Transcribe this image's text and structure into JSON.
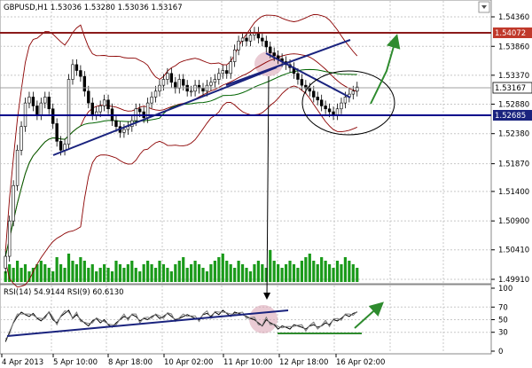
{
  "header": {
    "main_title": "GBPUSD,H1  1.53036 1.53280 1.53036 1.53167",
    "rsi_title": "RSI(14) 54.9144  RSI(9) 60.6130"
  },
  "price_axis": {
    "min": 1.4991,
    "max": 1.5442,
    "ticks": [
      "1.54360",
      "1.53860",
      "1.53370",
      "1.52880",
      "1.52380",
      "1.51870",
      "1.51400",
      "1.50900",
      "1.50410",
      "1.49910"
    ]
  },
  "price_labels": {
    "resistance": "1.54072",
    "current": "1.53167",
    "support": "1.52685"
  },
  "rsi_axis": {
    "ticks": [
      "100",
      "70",
      "50",
      "30",
      "0"
    ]
  },
  "time_axis": {
    "labels": [
      "4 Apr 2013",
      "5 Apr 10:00",
      "8 Apr 18:00",
      "10 Apr 02:00",
      "11 Apr 10:00",
      "12 Apr 18:00",
      "16 Apr 02:00"
    ]
  },
  "colors": {
    "candle": "#000000",
    "bollinger": "#8b0000",
    "sma": "#006400",
    "resistance_line": "#8b1a1a",
    "support_line": "#00008b",
    "trendline": "#1a237e",
    "annotation_arrow": "#2e8b2e",
    "volume": "#1a9a1a",
    "highlight": "#d9a0b0",
    "label_box": "#c0392b",
    "support_box": "#1a237e"
  },
  "chart_data": {
    "type": "line",
    "series": [
      {
        "values": [
          1.503,
          1.509,
          1.515,
          1.521,
          1.525,
          1.529,
          1.53,
          1.5285,
          1.527,
          1.529,
          1.53,
          1.528,
          1.5255,
          1.5225,
          1.521,
          1.522,
          1.533,
          1.5355,
          1.5345,
          1.5335,
          1.531,
          1.529,
          1.527,
          1.5275,
          1.5285,
          1.5295,
          1.528,
          1.526,
          1.525,
          1.524,
          1.5245,
          1.525,
          1.526,
          1.528,
          1.5275,
          1.5265,
          1.529,
          1.53,
          1.531,
          1.532,
          1.533,
          1.534,
          1.5325,
          1.5315,
          1.533,
          1.532,
          1.531,
          1.531,
          1.532,
          1.5315,
          1.531,
          1.532,
          1.5325,
          1.533,
          1.534,
          1.5345,
          1.534,
          1.536,
          1.538,
          1.5395,
          1.54,
          1.5395,
          1.5405,
          1.541,
          1.54,
          1.5395,
          1.5385,
          1.5375,
          1.537,
          1.5365,
          1.536,
          1.5355,
          1.535,
          1.534,
          1.533,
          1.532,
          1.5315,
          1.531,
          1.53,
          1.5295,
          1.5285,
          1.528,
          1.5275,
          1.527,
          1.528,
          1.529,
          1.53,
          1.5305,
          1.531,
          1.5317
        ]
      }
    ],
    "volume": {
      "values": [
        0.3,
        0.5,
        0.4,
        0.6,
        0.4,
        0.5,
        0.3,
        0.4,
        0.5,
        0.6,
        0.5,
        0.4,
        0.3,
        0.7,
        0.5,
        0.4,
        0.8,
        0.6,
        0.5,
        0.7,
        0.6,
        0.4,
        0.5,
        0.3,
        0.4,
        0.5,
        0.4,
        0.3,
        0.6,
        0.5,
        0.4,
        0.5,
        0.6,
        0.4,
        0.3,
        0.5,
        0.6,
        0.5,
        0.4,
        0.6,
        0.5,
        0.4,
        0.3,
        0.5,
        0.6,
        0.7,
        0.4,
        0.5,
        0.6,
        0.5,
        0.4,
        0.3,
        0.5,
        0.6,
        0.7,
        0.8,
        0.6,
        0.5,
        0.4,
        0.6,
        0.5,
        0.4,
        0.3,
        0.5,
        0.6,
        0.5,
        0.4,
        0.9,
        0.6,
        0.5,
        0.4,
        0.5,
        0.6,
        0.5,
        0.4,
        0.6,
        0.7,
        0.8,
        0.6,
        0.5,
        0.7,
        0.6,
        0.5,
        0.4,
        0.6,
        0.5,
        0.7,
        0.6,
        0.5,
        0.4
      ]
    },
    "rsi": {
      "values": [
        15,
        30,
        45,
        55,
        62,
        58,
        55,
        60,
        52,
        48,
        55,
        62,
        50,
        45,
        55,
        60,
        65,
        52,
        58,
        50,
        45,
        40,
        48,
        52,
        45,
        50,
        42,
        38,
        45,
        50,
        55,
        52,
        58,
        55,
        48,
        52,
        50,
        55,
        58,
        52,
        55,
        60,
        55,
        50,
        52,
        55,
        58,
        55,
        52,
        50,
        58,
        60,
        55,
        62,
        58,
        65,
        60,
        55,
        62,
        60,
        58,
        55,
        52,
        50,
        45,
        40,
        50,
        45,
        42,
        35,
        40,
        38,
        35,
        42,
        40,
        38,
        35,
        40,
        42,
        38,
        40,
        45,
        42,
        50,
        48,
        52,
        58,
        55,
        60,
        62
      ]
    }
  }
}
